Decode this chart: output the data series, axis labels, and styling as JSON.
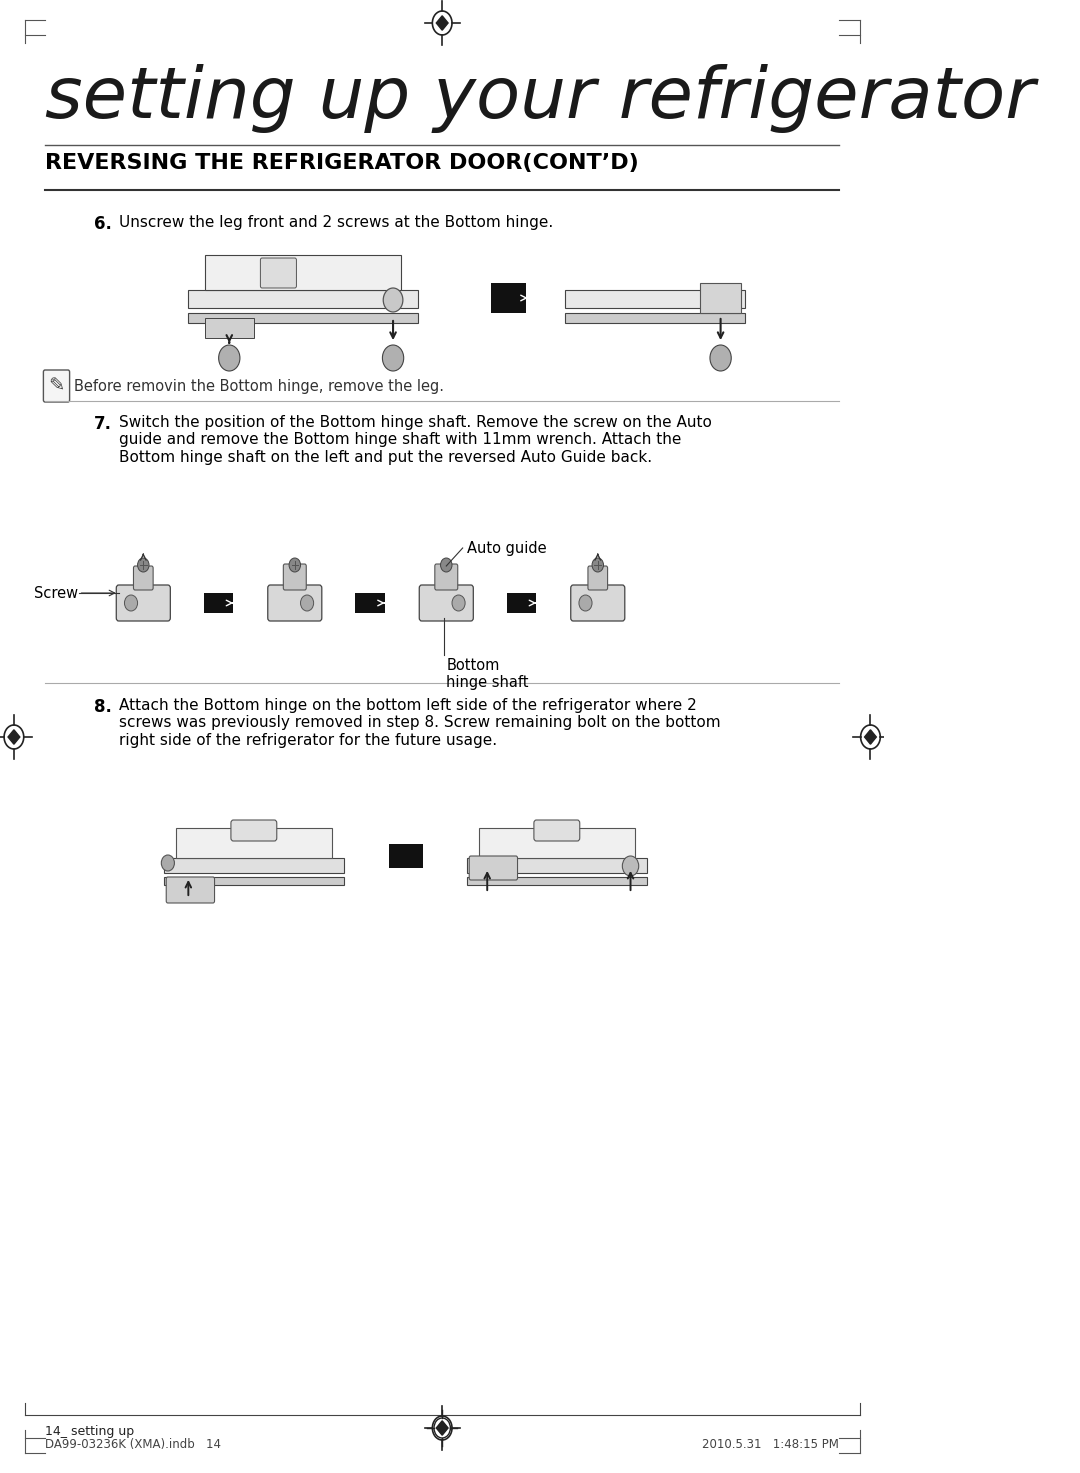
{
  "bg_color": "#ffffff",
  "page_title": "setting up your refrigerator",
  "section_title": "REVERSING THE REFRIGERATOR DOOR(CONT’D)",
  "step6_label": "6.",
  "step6_text": "Unscrew the leg front and 2 screws at the Bottom hinge.",
  "note_text": "Before removin the Bottom hinge, remove the leg.",
  "step7_label": "7.",
  "step7_text": "Switch the position of the Bottom hinge shaft. Remove the screw on the Auto\nguide and remove the Bottom hinge shaft with 11mm wrench. Attach the\nBottom hinge shaft on the left and put the reversed Auto Guide back.",
  "auto_guide_label": "Auto guide",
  "screw_label": "Screw",
  "bottom_hinge_label": "Bottom\nhinge shaft",
  "step8_label": "8.",
  "step8_text": "Attach the Bottom hinge on the bottom left side of the refrigerator where 2\nscrews was previously removed in step 8. Screw remaining bolt on the bottom\nright side of the refrigerator for the future usage.",
  "footer_left": "14_ setting up",
  "footer_file": "DA99-03236K (XMA).indb   14",
  "footer_date": "2010.5.31   1:48:15 PM",
  "margin_color": "#333333",
  "line_color": "#000000",
  "title_font_size": 52,
  "section_font_size": 16,
  "body_font_size": 11,
  "note_font_size": 10.5
}
